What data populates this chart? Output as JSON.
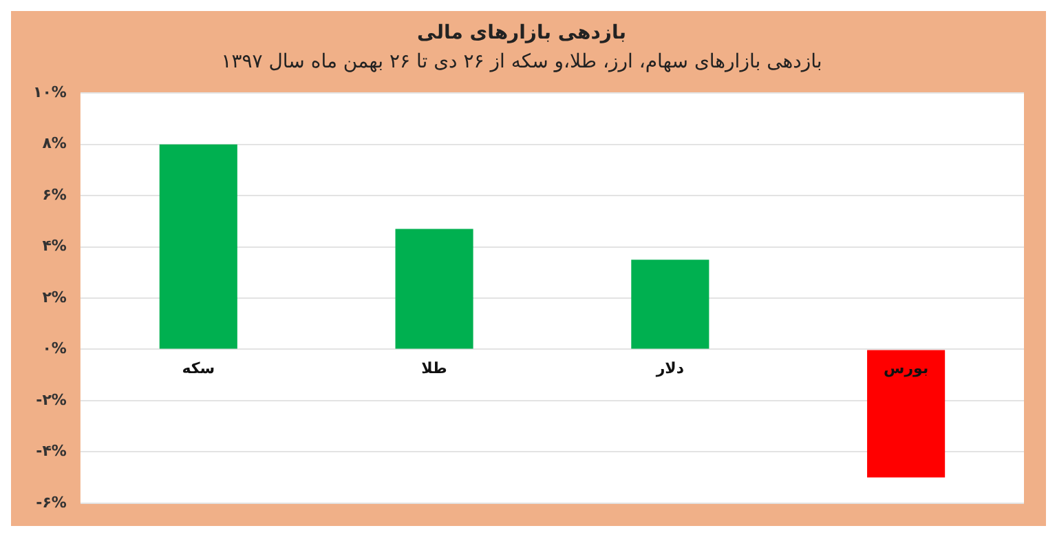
{
  "chart_data": {
    "type": "bar",
    "title": "بازدهی بازارهای مالی",
    "subtitle": "بازدهی بازارهای سهام، ارز، طلا،و سکه از ۲۶ دی تا ۲۶ بهمن ماه سال ۱۳۹۷",
    "categories": [
      "سکه",
      "طلا",
      "دلار",
      "بورس"
    ],
    "values": [
      8.0,
      4.7,
      3.5,
      -5.0
    ],
    "colors": [
      "#00b050",
      "#00b050",
      "#00b050",
      "#ff0000"
    ],
    "ylim": [
      -6,
      10
    ],
    "yticks": [
      {
        "value": -6,
        "label": "-۶%"
      },
      {
        "value": -4,
        "label": "-۴%"
      },
      {
        "value": -2,
        "label": "-۲%"
      },
      {
        "value": 0,
        "label": "۰%"
      },
      {
        "value": 2,
        "label": "۲%"
      },
      {
        "value": 4,
        "label": "۴%"
      },
      {
        "value": 6,
        "label": "۶%"
      },
      {
        "value": 8,
        "label": "۸%"
      },
      {
        "value": 10,
        "label": "۱۰%"
      }
    ],
    "grid": "y",
    "legend": false
  }
}
